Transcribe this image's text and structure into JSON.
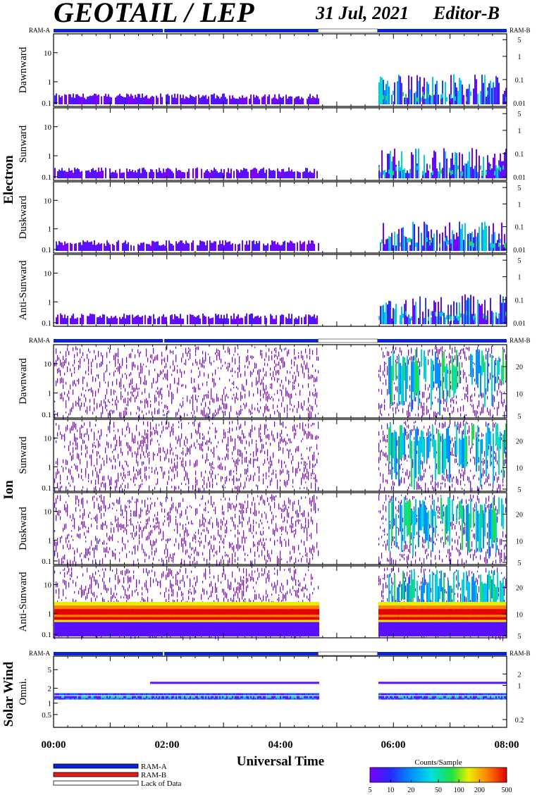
{
  "header": {
    "title": "GEOTAIL / LEP",
    "date": "31 Jul, 2021",
    "editor": "Editor-B"
  },
  "ram": {
    "left": "RAM-A",
    "right": "RAM-B"
  },
  "groups": {
    "electron": "Electron",
    "ion": "Ion",
    "solar_wind": "Solar Wind"
  },
  "xaxis": {
    "label": "Universal Time",
    "ticks": [
      "00:00",
      "02:00",
      "04:00",
      "06:00",
      "08:00"
    ]
  },
  "legend": {
    "ram_a": "RAM-A",
    "ram_b": "RAM-B",
    "lack": "Lack of Data"
  },
  "colorbar": {
    "title": "Counts/Sample",
    "ticks": [
      "5",
      "10",
      "20",
      "50",
      "100",
      "200",
      "500"
    ]
  },
  "colors": {
    "ram_a": "#0a22d8",
    "ram_b": "#e81c1c",
    "low": "#7a00ff"
  },
  "chart_data": {
    "type": "heatmap",
    "time_range_hours": [
      0,
      8
    ],
    "data_gap_hours": [
      4.67,
      5.72
    ],
    "ram_mode": "RAM-A (whole interval)",
    "panels": [
      {
        "group": "Electron",
        "name": "Dawnward",
        "left_ticks": [
          "10",
          "1",
          "0.1"
        ],
        "right_ticks": [
          "5",
          "1",
          "0.1",
          "0.01"
        ],
        "yrange": [
          0.08,
          40
        ],
        "scale": "log"
      },
      {
        "group": "Electron",
        "name": "Sunward",
        "left_ticks": [
          "10",
          "1",
          "0.1"
        ],
        "right_ticks": [
          "5",
          "1",
          "0.1",
          "0.01"
        ],
        "yrange": [
          0.08,
          40
        ],
        "scale": "log"
      },
      {
        "group": "Electron",
        "name": "Duskward",
        "left_ticks": [
          "10",
          "1",
          "0.1"
        ],
        "right_ticks": [
          "5",
          "1",
          "0.1",
          "0.01"
        ],
        "yrange": [
          0.08,
          40
        ],
        "scale": "log"
      },
      {
        "group": "Electron",
        "name": "Anti-Sunward",
        "left_ticks": [
          "10",
          "1",
          "0.1"
        ],
        "right_ticks": [
          "5",
          "1",
          "0.1",
          "0.01"
        ],
        "yrange": [
          0.08,
          40
        ],
        "scale": "log"
      },
      {
        "group": "Ion",
        "name": "Dawnward",
        "left_ticks": [
          "10",
          "1",
          "0.1"
        ],
        "right_ticks": [
          "20",
          "10",
          "5"
        ],
        "yrange": [
          0.08,
          40
        ],
        "scale": "log"
      },
      {
        "group": "Ion",
        "name": "Sunward",
        "left_ticks": [
          "10",
          "1",
          "0.1"
        ],
        "right_ticks": [
          "20",
          "10",
          "5"
        ],
        "yrange": [
          0.08,
          40
        ],
        "scale": "log"
      },
      {
        "group": "Ion",
        "name": "Duskward",
        "left_ticks": [
          "10",
          "1",
          "0.1"
        ],
        "right_ticks": [
          "20",
          "10",
          "5"
        ],
        "yrange": [
          0.08,
          40
        ],
        "scale": "log"
      },
      {
        "group": "Ion",
        "name": "Anti-Sunward",
        "left_ticks": [
          "10",
          "1",
          "0.1"
        ],
        "right_ticks": [
          "20",
          "10",
          "5"
        ],
        "yrange": [
          0.08,
          40
        ],
        "scale": "log"
      },
      {
        "group": "Solar Wind",
        "name": "Omni.",
        "left_ticks": [
          "5",
          "2",
          "1",
          "0.5"
        ],
        "right_ticks": [
          "2",
          "1",
          "0.2"
        ],
        "yrange": [
          0.2,
          10
        ],
        "scale": "log"
      }
    ],
    "colorbar_range": [
      5,
      500
    ]
  }
}
